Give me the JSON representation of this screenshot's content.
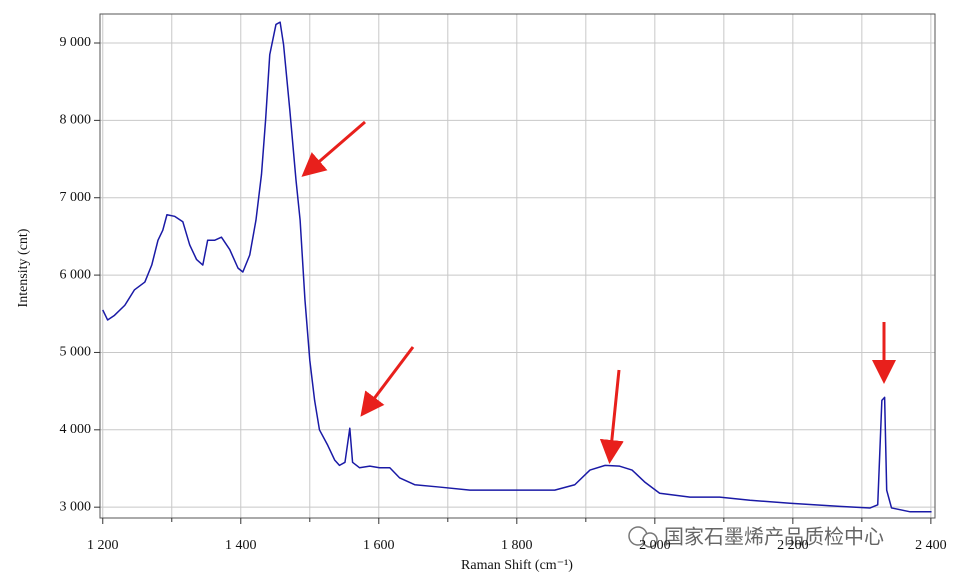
{
  "chart_data": {
    "type": "line",
    "x_label": "Raman Shift (cm⁻¹)",
    "y_label": "Intensity (cnt)",
    "annotation": "国家石墨烯产品质检中心",
    "xlim": [
      1196,
      2406
    ],
    "ylim": [
      2860,
      9375
    ],
    "xticks": [
      {
        "value": 1200,
        "label": "1 200"
      },
      {
        "value": 1400,
        "label": "1 400"
      },
      {
        "value": 1600,
        "label": "1 600"
      },
      {
        "value": 1800,
        "label": "1 800"
      },
      {
        "value": 2000,
        "label": "2 000"
      },
      {
        "value": 2200,
        "label": "2 200"
      },
      {
        "value": 2400,
        "label": "2 400"
      }
    ],
    "xgrid_minor": [
      1300,
      1500,
      1700,
      1900,
      2100,
      2300
    ],
    "yticks": [
      {
        "value": 3000,
        "label": "3 000"
      },
      {
        "value": 4000,
        "label": "4 000"
      },
      {
        "value": 5000,
        "label": "5 000"
      },
      {
        "value": 6000,
        "label": "6 000"
      },
      {
        "value": 7000,
        "label": "7 000"
      },
      {
        "value": 8000,
        "label": "8 000"
      },
      {
        "value": 9000,
        "label": "9 000"
      }
    ],
    "grid": true,
    "series": [
      {
        "color": "#1a1aa6",
        "x": [
          1200,
          1207,
          1217,
          1232,
          1246,
          1261,
          1271,
          1280,
          1287,
          1293,
          1304,
          1316,
          1326,
          1336,
          1345,
          1352,
          1362,
          1372,
          1384,
          1396,
          1403,
          1413,
          1422,
          1430,
          1436,
          1442,
          1451,
          1457,
          1462,
          1471,
          1480,
          1486,
          1493,
          1500,
          1507,
          1514,
          1526,
          1536,
          1543,
          1551,
          1558,
          1562,
          1572,
          1587,
          1601,
          1616,
          1630,
          1652,
          1688,
          1732,
          1775,
          1819,
          1855,
          1884,
          1906,
          1928,
          1949,
          1967,
          1986,
          2007,
          2051,
          2094,
          2138,
          2196,
          2268,
          2312,
          2323,
          2329,
          2333,
          2336,
          2343,
          2370,
          2401
        ],
        "values": [
          5550,
          5420,
          5480,
          5610,
          5810,
          5910,
          6130,
          6450,
          6580,
          6780,
          6760,
          6690,
          6390,
          6200,
          6130,
          6450,
          6450,
          6490,
          6330,
          6090,
          6040,
          6260,
          6710,
          7300,
          8010,
          8850,
          9240,
          9270,
          8980,
          8140,
          7230,
          6710,
          5680,
          4900,
          4380,
          4000,
          3800,
          3610,
          3540,
          3580,
          4020,
          3580,
          3510,
          3530,
          3510,
          3510,
          3380,
          3290,
          3260,
          3220,
          3220,
          3220,
          3220,
          3290,
          3480,
          3540,
          3530,
          3480,
          3320,
          3180,
          3130,
          3130,
          3090,
          3050,
          3010,
          2990,
          3030,
          4380,
          4420,
          3220,
          2990,
          2940,
          2940
        ]
      }
    ]
  }
}
